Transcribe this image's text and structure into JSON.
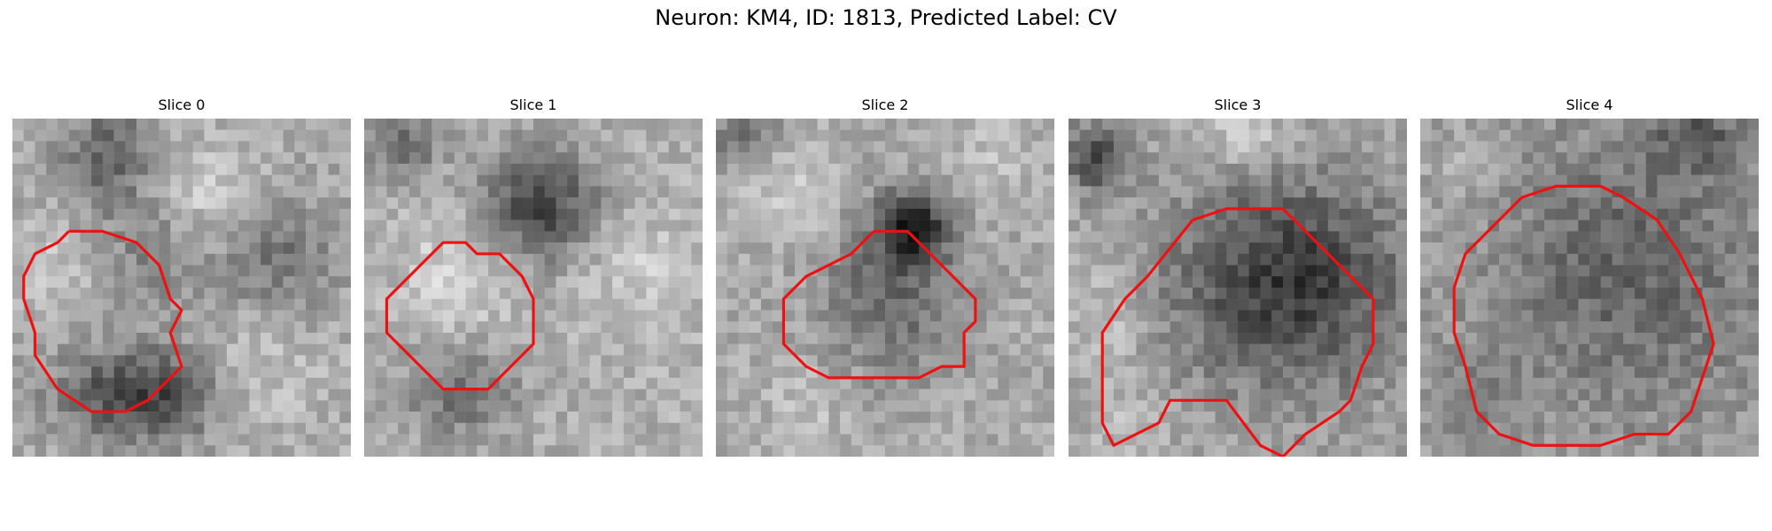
{
  "figure": {
    "title": "Neuron: KM4, ID: 1813, Predicted Label: CV"
  },
  "panels": [
    {
      "label": "Slice 0",
      "grid_size": 30
    },
    {
      "label": "Slice 1",
      "grid_size": 30
    },
    {
      "label": "Slice 2",
      "grid_size": 30
    },
    {
      "label": "Slice 3",
      "grid_size": 30
    },
    {
      "label": "Slice 4",
      "grid_size": 30
    }
  ],
  "colors": {
    "contour": "#ee1111",
    "background": "#ffffff"
  }
}
